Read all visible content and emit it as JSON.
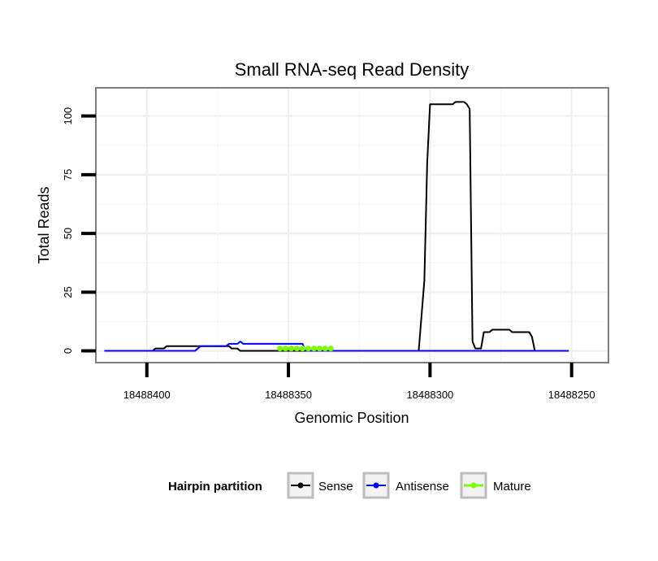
{
  "chart_data": {
    "type": "line",
    "title": "Small RNA-seq Read Density",
    "xlabel": "Genomic Position",
    "ylabel": "Total Reads",
    "x_reversed": true,
    "xlim": [
      18488418,
      18488237
    ],
    "ylim": [
      -5,
      112
    ],
    "x_ticks": [
      18488400,
      18488350,
      18488300,
      18488250
    ],
    "x_tick_labels": [
      "18488400",
      "18488350",
      "18488300",
      "18488250"
    ],
    "y_ticks": [
      0,
      25,
      50,
      75,
      100
    ],
    "y_tick_labels": [
      "0",
      "25",
      "50",
      "75",
      "100"
    ],
    "grid": true,
    "legend": {
      "title": "Hairpin partition",
      "position": "bottom"
    },
    "series": [
      {
        "name": "Sense",
        "color": "#000000",
        "points": [
          [
            18488415,
            0
          ],
          [
            18488398,
            0
          ],
          [
            18488397,
            1
          ],
          [
            18488394,
            1
          ],
          [
            18488393,
            2
          ],
          [
            18488371,
            2
          ],
          [
            18488370,
            1
          ],
          [
            18488368,
            1
          ],
          [
            18488367,
            0
          ],
          [
            18488304,
            0
          ],
          [
            18488302,
            30
          ],
          [
            18488301,
            80
          ],
          [
            18488300,
            105
          ],
          [
            18488292,
            105
          ],
          [
            18488291,
            106
          ],
          [
            18488288,
            106
          ],
          [
            18488287,
            105
          ],
          [
            18488286,
            103
          ],
          [
            18488285,
            4
          ],
          [
            18488284,
            1
          ],
          [
            18488282,
            1
          ],
          [
            18488281,
            8
          ],
          [
            18488279,
            8
          ],
          [
            18488278,
            9
          ],
          [
            18488272,
            9
          ],
          [
            18488271,
            8
          ],
          [
            18488265,
            8
          ],
          [
            18488264,
            6
          ],
          [
            18488263,
            0
          ],
          [
            18488251,
            0
          ]
        ]
      },
      {
        "name": "Antisense",
        "color": "#0000ff",
        "points": [
          [
            18488415,
            0
          ],
          [
            18488398,
            0
          ],
          [
            18488383,
            0
          ],
          [
            18488382,
            1
          ],
          [
            18488381,
            2
          ],
          [
            18488372,
            2
          ],
          [
            18488371,
            3
          ],
          [
            18488368,
            3
          ],
          [
            18488367,
            4
          ],
          [
            18488366,
            3
          ],
          [
            18488345,
            3
          ],
          [
            18488344,
            0
          ],
          [
            18488251,
            0
          ]
        ]
      },
      {
        "name": "Mature",
        "color": "#7cfc00",
        "points": [
          [
            18488353,
            1
          ],
          [
            18488351,
            1
          ],
          [
            18488349,
            1
          ],
          [
            18488347,
            1
          ],
          [
            18488345,
            1
          ],
          [
            18488343,
            1
          ],
          [
            18488341,
            1
          ],
          [
            18488339,
            1
          ],
          [
            18488337,
            1
          ],
          [
            18488335,
            1
          ]
        ]
      }
    ]
  }
}
